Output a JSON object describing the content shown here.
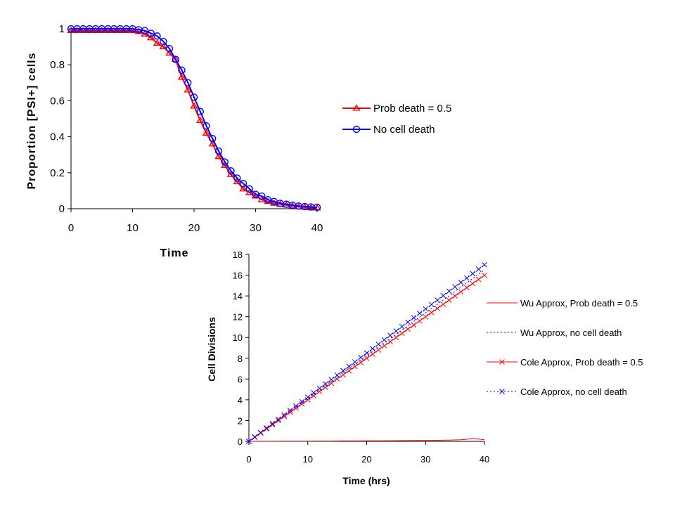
{
  "chart_data": [
    {
      "type": "line",
      "title": "",
      "xlabel": "Time",
      "ylabel": "Proportion [PSI+] cells",
      "xlim": [
        0,
        40
      ],
      "ylim": [
        0,
        1
      ],
      "x_ticks": [
        "0",
        "10",
        "20",
        "30",
        "40"
      ],
      "y_ticks": [
        "0",
        "0.2",
        "0.4",
        "0.6",
        "0.8",
        "1"
      ],
      "grid": false,
      "legend_position": "right",
      "series": [
        {
          "name": "Prob death = 0.5",
          "color": "#ff0000",
          "marker": "triangle",
          "x": [
            0,
            1,
            2,
            3,
            4,
            5,
            6,
            7,
            8,
            9,
            10,
            11,
            12,
            13,
            14,
            15,
            16,
            17,
            18,
            19,
            20,
            21,
            22,
            23,
            24,
            25,
            26,
            27,
            28,
            29,
            30,
            31,
            32,
            33,
            34,
            35,
            36,
            37,
            38,
            39,
            40
          ],
          "y": [
            0.99,
            0.99,
            0.99,
            0.99,
            0.99,
            0.99,
            0.99,
            0.99,
            0.99,
            0.99,
            0.99,
            0.985,
            0.97,
            0.95,
            0.92,
            0.9,
            0.865,
            0.83,
            0.73,
            0.66,
            0.57,
            0.49,
            0.42,
            0.36,
            0.29,
            0.24,
            0.19,
            0.15,
            0.11,
            0.09,
            0.07,
            0.05,
            0.04,
            0.03,
            0.025,
            0.02,
            0.015,
            0.01,
            0.008,
            0.005,
            0.004
          ]
        },
        {
          "name": "No cell death",
          "color": "#0000ff",
          "marker": "circle",
          "x": [
            0,
            1,
            2,
            3,
            4,
            5,
            6,
            7,
            8,
            9,
            10,
            11,
            12,
            13,
            14,
            15,
            16,
            17,
            18,
            19,
            20,
            21,
            22,
            23,
            24,
            25,
            26,
            27,
            28,
            29,
            30,
            31,
            32,
            33,
            34,
            35,
            36,
            37,
            38,
            39,
            40
          ],
          "y": [
            1,
            1,
            1,
            1,
            1,
            1,
            1,
            1,
            1,
            1,
            1,
            0.995,
            0.99,
            0.975,
            0.96,
            0.93,
            0.89,
            0.83,
            0.77,
            0.7,
            0.62,
            0.54,
            0.46,
            0.39,
            0.32,
            0.26,
            0.21,
            0.17,
            0.14,
            0.11,
            0.08,
            0.07,
            0.05,
            0.04,
            0.03,
            0.025,
            0.02,
            0.015,
            0.012,
            0.01,
            0.008
          ]
        }
      ]
    },
    {
      "type": "line",
      "title": "",
      "xlabel": "Time (hrs)",
      "ylabel": "Cell Divisions",
      "xlim": [
        0,
        40
      ],
      "ylim": [
        0,
        18
      ],
      "x_ticks": [
        "0",
        "10",
        "20",
        "30",
        "40"
      ],
      "y_ticks": [
        "0",
        "2",
        "4",
        "6",
        "8",
        "10",
        "12",
        "14",
        "16",
        "18"
      ],
      "grid": false,
      "legend_position": "right",
      "series": [
        {
          "name": "Wu Approx, Prob death = 0.5",
          "color": "#ff0000",
          "line": "solid",
          "marker": "none",
          "x": [
            0,
            2,
            4,
            6,
            8,
            10,
            12,
            14,
            16,
            18,
            20,
            22,
            24,
            26,
            28,
            30,
            32,
            34,
            36,
            37,
            38,
            39,
            40
          ],
          "y": [
            0.0,
            0.01,
            0.01,
            0.02,
            0.02,
            0.02,
            0.03,
            0.03,
            0.04,
            0.04,
            0.05,
            0.05,
            0.06,
            0.07,
            0.08,
            0.09,
            0.1,
            0.12,
            0.15,
            0.2,
            0.28,
            0.22,
            0.15
          ]
        },
        {
          "name": "Wu Approx, no cell death",
          "color": "#0000ff",
          "line": "dotted",
          "marker": "none",
          "x": [
            0,
            40
          ],
          "y": [
            0.0,
            16.5
          ]
        },
        {
          "name": "Cole Approx, Prob death = 0.5",
          "color": "#ff0000",
          "line": "solid",
          "marker": "x",
          "x": [
            0,
            1,
            2,
            3,
            4,
            5,
            6,
            7,
            8,
            9,
            10,
            11,
            12,
            13,
            14,
            15,
            16,
            17,
            18,
            19,
            20,
            21,
            22,
            23,
            24,
            25,
            26,
            27,
            28,
            29,
            30,
            31,
            32,
            33,
            34,
            35,
            36,
            37,
            38,
            39,
            40
          ],
          "y": [
            0.0,
            0.4,
            0.8,
            1.2,
            1.6,
            2.0,
            2.4,
            2.8,
            3.2,
            3.6,
            4.0,
            4.4,
            4.8,
            5.2,
            5.6,
            6.0,
            6.4,
            6.8,
            7.2,
            7.6,
            8.0,
            8.4,
            8.8,
            9.2,
            9.6,
            10.0,
            10.4,
            10.8,
            11.2,
            11.6,
            12.0,
            12.4,
            12.8,
            13.2,
            13.6,
            14.0,
            14.4,
            14.8,
            15.2,
            15.6,
            16.0
          ]
        },
        {
          "name": "Cole Approx,  no cell death",
          "color": "#0000ff",
          "line": "dotted",
          "marker": "x",
          "x": [
            0,
            1,
            2,
            3,
            4,
            5,
            6,
            7,
            8,
            9,
            10,
            11,
            12,
            13,
            14,
            15,
            16,
            17,
            18,
            19,
            20,
            21,
            22,
            23,
            24,
            25,
            26,
            27,
            28,
            29,
            30,
            31,
            32,
            33,
            34,
            35,
            36,
            37,
            38,
            39,
            40
          ],
          "y": [
            0.0,
            0.425,
            0.85,
            1.275,
            1.7,
            2.125,
            2.55,
            2.975,
            3.4,
            3.825,
            4.25,
            4.675,
            5.1,
            5.525,
            5.95,
            6.375,
            6.8,
            7.225,
            7.65,
            8.075,
            8.5,
            8.925,
            9.35,
            9.775,
            10.2,
            10.625,
            11.05,
            11.475,
            11.9,
            12.325,
            12.75,
            13.175,
            13.6,
            14.025,
            14.45,
            14.875,
            15.3,
            15.725,
            16.15,
            16.575,
            17.0
          ]
        }
      ]
    }
  ]
}
